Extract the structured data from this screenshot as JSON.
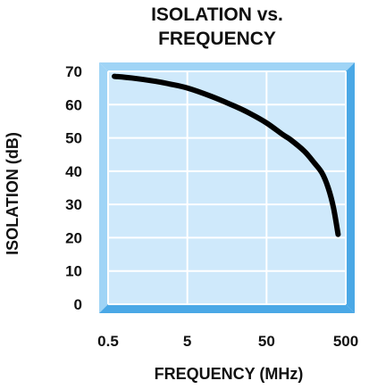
{
  "chart_data": {
    "type": "line",
    "title_line1": "ISOLATION vs.",
    "title_line2": "FREQUENCY",
    "xlabel": "FREQUENCY (MHz)",
    "ylabel": "ISOLATION (dB)",
    "x_scale": "log",
    "xlim": [
      0.5,
      500
    ],
    "ylim": [
      0,
      70
    ],
    "x_ticks": [
      0.5,
      5,
      50,
      500
    ],
    "x_tick_labels": [
      "0.5",
      "5",
      "50",
      "500"
    ],
    "y_ticks": [
      0,
      10,
      20,
      30,
      40,
      50,
      60,
      70
    ],
    "y_tick_labels": [
      "0",
      "10",
      "20",
      "30",
      "40",
      "50",
      "60",
      "70"
    ],
    "grid": true,
    "series": [
      {
        "x": [
          0.6,
          1,
          2,
          3,
          5,
          10,
          20,
          30,
          50,
          80,
          100,
          150,
          200,
          250,
          300,
          350,
          400
        ],
        "y": [
          68.5,
          68,
          67,
          66.2,
          65,
          62.5,
          59.5,
          57.5,
          54.5,
          51,
          49.5,
          46,
          42.5,
          39.5,
          35,
          29,
          21
        ]
      }
    ],
    "colors": {
      "plot_fill": "#cfe9fb",
      "bevel_light": "#9fd4f6",
      "bevel_dark": "#4aa8e6",
      "grid": "#ffffff",
      "curve": "#000000"
    }
  }
}
